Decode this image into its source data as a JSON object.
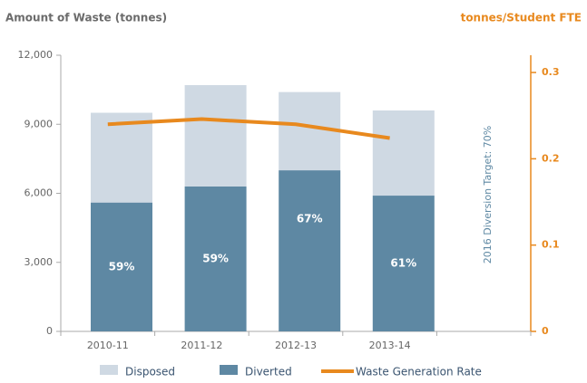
{
  "chart_data": {
    "type": "bar-line",
    "title_left": "Amount of Waste (tonnes)",
    "title_right": "tonnes/Student FTE",
    "annotation": "2016 Diversion Target: 70%",
    "categories": [
      "2010-11",
      "2011-12",
      "2012-13",
      "2013-14",
      null
    ],
    "stacked": true,
    "series": [
      {
        "name": "Diverted",
        "color": "#5e88a3",
        "values": [
          5600,
          6300,
          7000,
          5900,
          null
        ]
      },
      {
        "name": "Disposed",
        "color": "#cfd9e3",
        "values": [
          3900,
          4400,
          3400,
          3700,
          null
        ]
      },
      {
        "name": "Waste Generation Rate",
        "color": "#e8891e",
        "axis": "y2",
        "type": "line",
        "values": [
          0.24,
          0.246,
          0.24,
          0.224,
          null
        ]
      }
    ],
    "diversion_labels": [
      "59%",
      "59%",
      "67%",
      "61%"
    ],
    "legend_order": [
      1,
      0,
      2
    ],
    "legend": "bottom",
    "ylim": [
      0,
      12000
    ],
    "yticks": [
      0,
      {
        "value": 3000,
        "label": "3,000"
      },
      {
        "value": 6000,
        "label": "6,000"
      },
      {
        "value": 9000,
        "label": "9,000"
      },
      {
        "value": 12000,
        "label": "12,000"
      }
    ],
    "y2lim": [
      0,
      0.32
    ],
    "y2ticks": [
      0,
      0.1,
      0.2,
      0.3
    ],
    "grid": false
  }
}
